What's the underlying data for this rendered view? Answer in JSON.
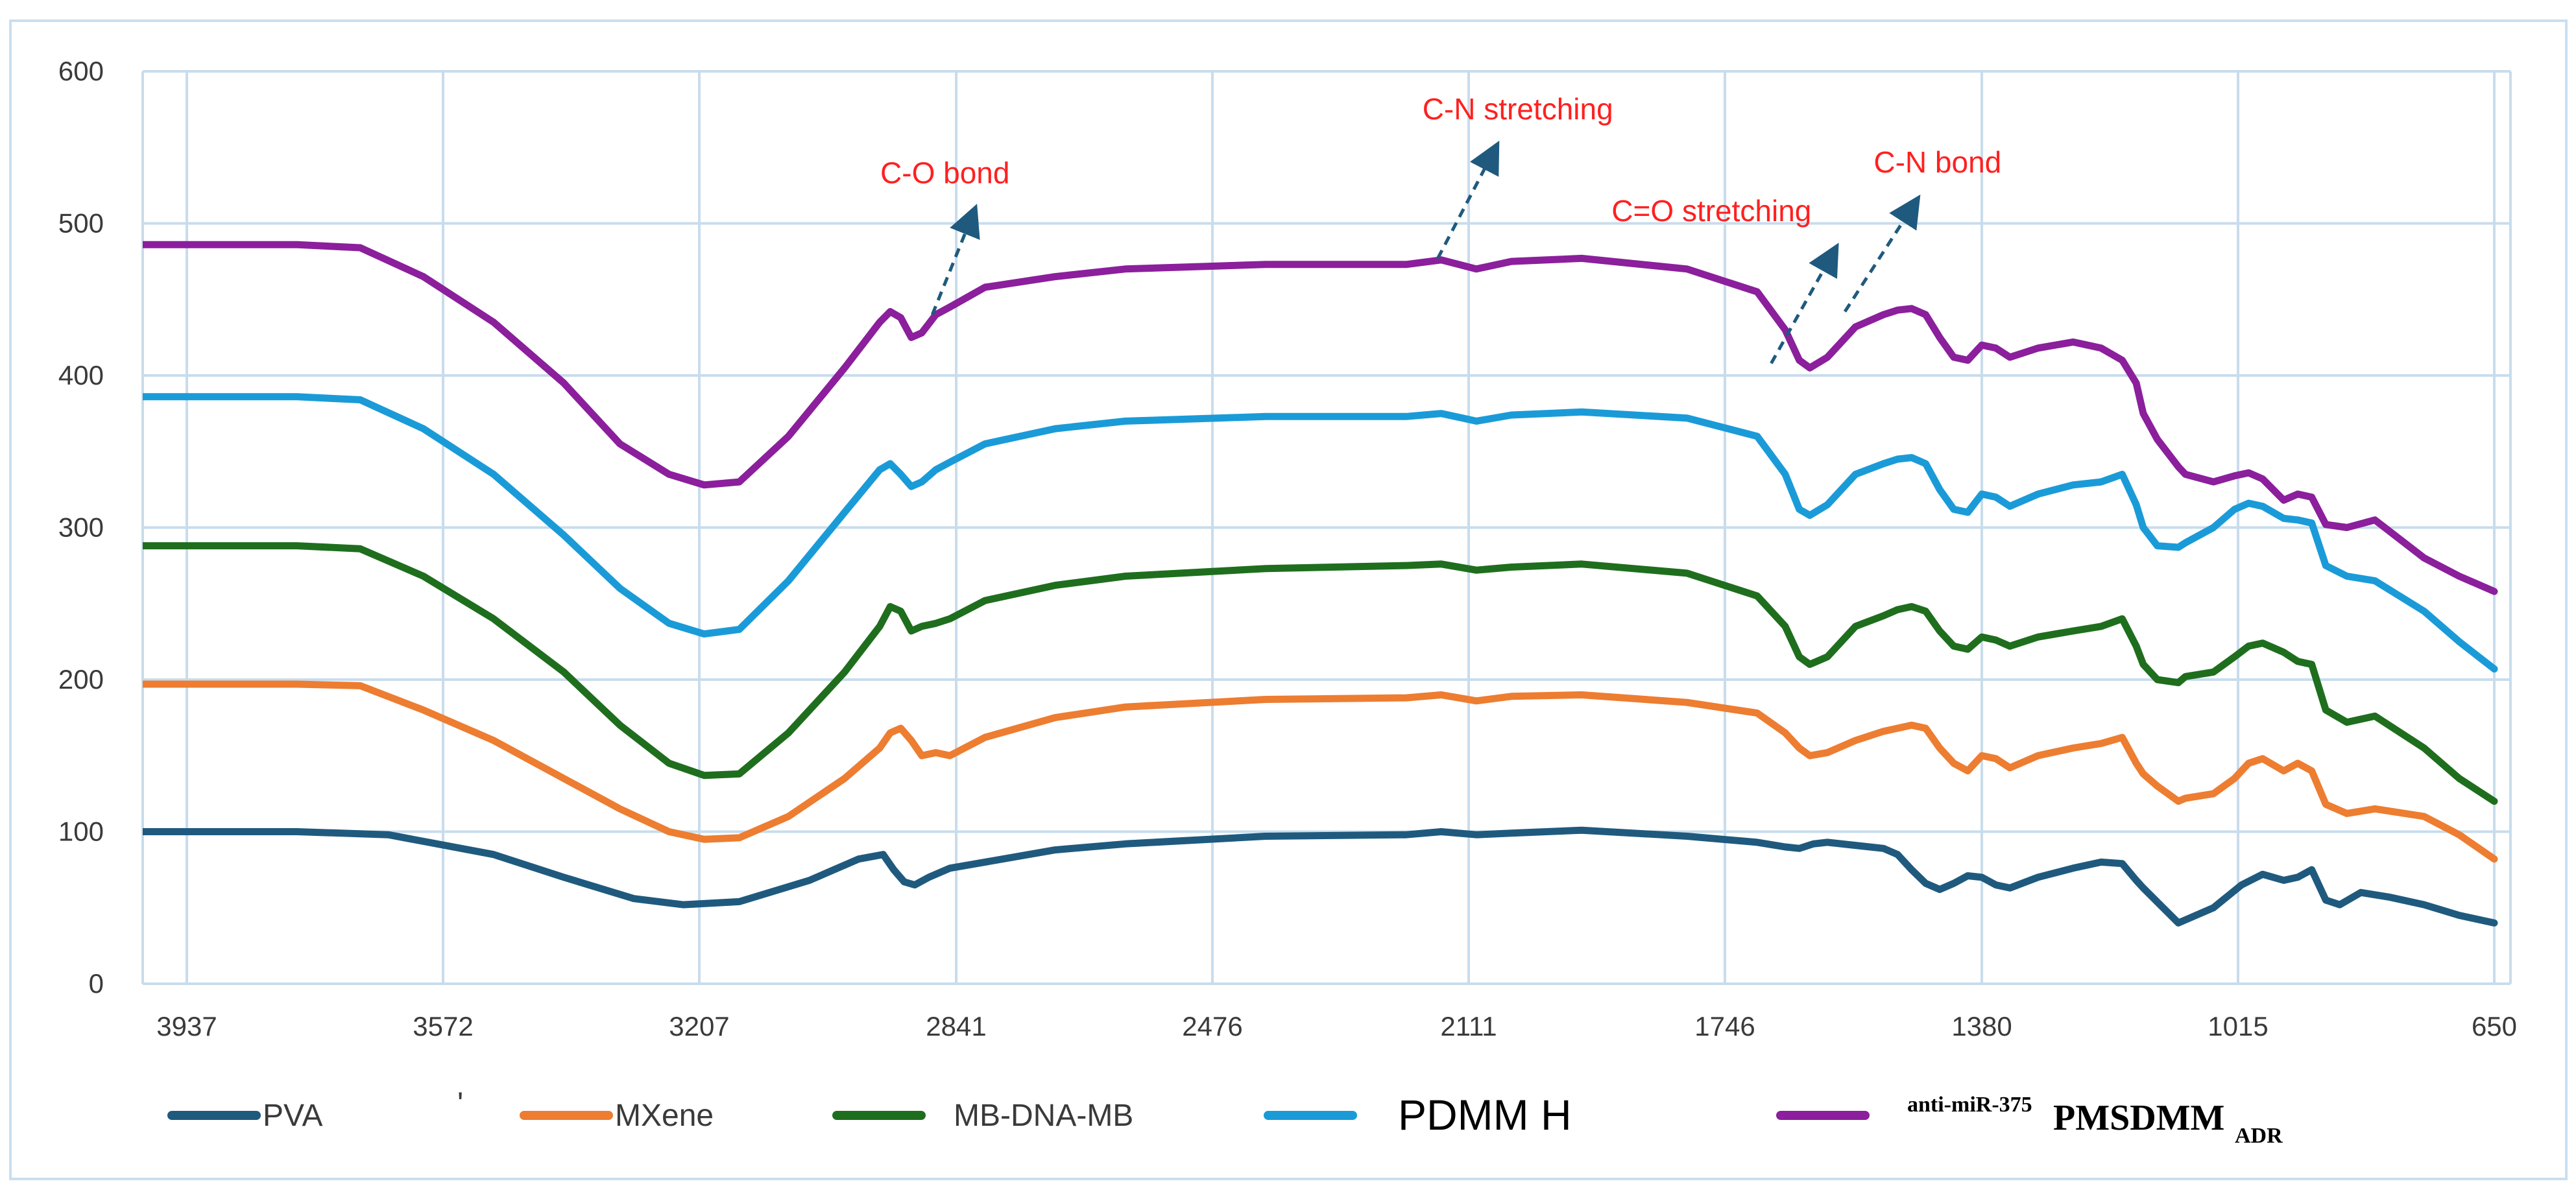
{
  "chart_data": {
    "type": "line",
    "title": "",
    "xlabel": "",
    "ylabel": "",
    "xlim": [
      3937,
      650
    ],
    "ylim": [
      0,
      600
    ],
    "x_reversed": true,
    "grid": true,
    "legend_position": "bottom",
    "x_ticks": [
      "3937",
      "3572",
      "3207",
      "2841",
      "2476",
      "2111",
      "1746",
      "1380",
      "1015",
      "650"
    ],
    "y_ticks": [
      "0",
      "100",
      "200",
      "300",
      "400",
      "500",
      "600"
    ],
    "series": [
      {
        "name": "PVA",
        "color": "#1f5a7e",
        "x": [
          4000,
          3780,
          3650,
          3500,
          3400,
          3300,
          3230,
          3150,
          3050,
          2980,
          2945,
          2930,
          2915,
          2900,
          2880,
          2850,
          2800,
          2700,
          2600,
          2400,
          2200,
          2150,
          2100,
          2050,
          1950,
          1800,
          1700,
          1660,
          1640,
          1620,
          1600,
          1560,
          1520,
          1500,
          1480,
          1460,
          1440,
          1420,
          1400,
          1380,
          1360,
          1340,
          1300,
          1250,
          1210,
          1180,
          1160,
          1150,
          1100,
          1090,
          1050,
          1010,
          980,
          950,
          930,
          910,
          890,
          870,
          840,
          800,
          750,
          700,
          650
        ],
        "y": [
          100,
          100,
          98,
          85,
          70,
          56,
          52,
          54,
          68,
          82,
          85,
          75,
          67,
          65,
          70,
          76,
          80,
          88,
          92,
          97,
          98,
          100,
          98,
          99,
          101,
          97,
          93,
          90,
          89,
          92,
          93,
          91,
          89,
          85,
          75,
          66,
          62,
          66,
          71,
          70,
          65,
          63,
          70,
          76,
          80,
          79,
          68,
          63,
          40,
          42,
          50,
          65,
          72,
          68,
          70,
          75,
          55,
          52,
          60,
          57,
          52,
          45,
          40
        ]
      },
      {
        "name": "MXene",
        "color": "#ed7d31",
        "x": [
          4000,
          3780,
          3690,
          3600,
          3500,
          3400,
          3320,
          3250,
          3200,
          3150,
          3080,
          3000,
          2950,
          2935,
          2920,
          2905,
          2890,
          2870,
          2850,
          2800,
          2700,
          2600,
          2400,
          2200,
          2150,
          2100,
          2050,
          1950,
          1800,
          1700,
          1660,
          1640,
          1625,
          1600,
          1560,
          1520,
          1500,
          1480,
          1460,
          1440,
          1420,
          1400,
          1380,
          1360,
          1340,
          1300,
          1250,
          1210,
          1180,
          1160,
          1150,
          1130,
          1100,
          1090,
          1050,
          1020,
          1000,
          980,
          950,
          930,
          910,
          890,
          860,
          820,
          750,
          700,
          650
        ],
        "y": [
          197,
          197,
          196,
          180,
          160,
          135,
          115,
          100,
          95,
          96,
          110,
          135,
          155,
          165,
          168,
          160,
          150,
          152,
          150,
          162,
          175,
          182,
          187,
          188,
          190,
          186,
          189,
          190,
          185,
          178,
          165,
          155,
          150,
          152,
          160,
          166,
          168,
          170,
          168,
          155,
          145,
          140,
          150,
          148,
          142,
          150,
          155,
          158,
          162,
          145,
          138,
          130,
          120,
          122,
          125,
          135,
          145,
          148,
          140,
          145,
          140,
          118,
          112,
          115,
          110,
          98,
          82
        ]
      },
      {
        "name": "MB-DNA-MB",
        "color": "#1e6e1e",
        "x": [
          4000,
          3780,
          3690,
          3600,
          3500,
          3400,
          3320,
          3250,
          3200,
          3150,
          3080,
          3000,
          2950,
          2935,
          2920,
          2905,
          2890,
          2870,
          2850,
          2800,
          2700,
          2600,
          2400,
          2200,
          2150,
          2100,
          2050,
          1950,
          1800,
          1700,
          1660,
          1640,
          1625,
          1600,
          1560,
          1520,
          1500,
          1480,
          1460,
          1440,
          1420,
          1400,
          1380,
          1360,
          1340,
          1300,
          1250,
          1210,
          1180,
          1160,
          1150,
          1130,
          1100,
          1090,
          1050,
          1020,
          1000,
          980,
          950,
          930,
          910,
          890,
          860,
          820,
          750,
          700,
          650
        ],
        "y": [
          288,
          288,
          286,
          268,
          240,
          205,
          170,
          145,
          137,
          138,
          165,
          205,
          235,
          248,
          245,
          232,
          235,
          237,
          240,
          252,
          262,
          268,
          273,
          275,
          276,
          272,
          274,
          276,
          270,
          255,
          235,
          215,
          210,
          215,
          235,
          242,
          246,
          248,
          245,
          232,
          222,
          220,
          228,
          226,
          222,
          228,
          232,
          235,
          240,
          222,
          210,
          200,
          198,
          202,
          205,
          215,
          222,
          224,
          218,
          212,
          210,
          180,
          172,
          176,
          155,
          135,
          120
        ]
      },
      {
        "name": "PDMM H",
        "color": "#1a9bd8",
        "x": [
          4000,
          3780,
          3690,
          3600,
          3500,
          3400,
          3320,
          3250,
          3200,
          3150,
          3080,
          3000,
          2950,
          2935,
          2920,
          2905,
          2890,
          2870,
          2850,
          2800,
          2700,
          2600,
          2400,
          2200,
          2150,
          2100,
          2050,
          1950,
          1800,
          1700,
          1660,
          1640,
          1625,
          1600,
          1560,
          1520,
          1500,
          1480,
          1460,
          1440,
          1420,
          1400,
          1380,
          1360,
          1340,
          1300,
          1250,
          1210,
          1180,
          1160,
          1150,
          1130,
          1100,
          1090,
          1050,
          1020,
          1000,
          980,
          950,
          930,
          910,
          890,
          860,
          820,
          750,
          700,
          650
        ],
        "y": [
          386,
          386,
          384,
          365,
          335,
          295,
          260,
          237,
          230,
          233,
          265,
          310,
          338,
          342,
          335,
          327,
          330,
          338,
          343,
          355,
          365,
          370,
          373,
          373,
          375,
          370,
          374,
          376,
          372,
          360,
          335,
          312,
          308,
          315,
          335,
          342,
          345,
          346,
          342,
          325,
          312,
          310,
          322,
          320,
          314,
          322,
          328,
          330,
          335,
          315,
          300,
          288,
          287,
          290,
          300,
          312,
          316,
          314,
          306,
          305,
          303,
          275,
          268,
          265,
          245,
          225,
          207
        ]
      },
      {
        "name": "anti-miR-375 PMSDMM ADR",
        "color": "#8b1f9c",
        "x": [
          4000,
          3780,
          3690,
          3600,
          3500,
          3400,
          3320,
          3250,
          3200,
          3150,
          3080,
          3000,
          2950,
          2935,
          2920,
          2905,
          2890,
          2870,
          2850,
          2800,
          2700,
          2600,
          2400,
          2200,
          2150,
          2100,
          2050,
          1950,
          1800,
          1700,
          1660,
          1640,
          1625,
          1600,
          1560,
          1520,
          1500,
          1480,
          1460,
          1440,
          1420,
          1400,
          1380,
          1360,
          1340,
          1300,
          1250,
          1210,
          1180,
          1160,
          1150,
          1130,
          1100,
          1090,
          1050,
          1020,
          1000,
          980,
          950,
          930,
          910,
          890,
          860,
          820,
          750,
          700,
          650
        ],
        "y": [
          486,
          486,
          484,
          465,
          435,
          395,
          355,
          335,
          328,
          330,
          360,
          405,
          435,
          442,
          438,
          425,
          428,
          440,
          445,
          458,
          465,
          470,
          473,
          473,
          476,
          470,
          475,
          477,
          470,
          455,
          430,
          410,
          405,
          412,
          432,
          440,
          443,
          444,
          440,
          425,
          412,
          410,
          420,
          418,
          412,
          418,
          422,
          418,
          410,
          395,
          375,
          358,
          340,
          335,
          330,
          334,
          336,
          332,
          318,
          322,
          320,
          302,
          300,
          305,
          280,
          268,
          258
        ]
      }
    ],
    "annotations": [
      {
        "text": "C-O bond",
        "tip_x": 2875,
        "tip_y": 440,
        "head_x": 2820,
        "head_y": 503
      },
      {
        "text": "C-N stretching",
        "tip_x": 2155,
        "tip_y": 477,
        "head_x": 2078,
        "head_y": 545
      },
      {
        "text": "C=O stretching",
        "tip_x": 1680,
        "tip_y": 408,
        "head_x": 1595,
        "head_y": 478
      },
      {
        "text": "C-N bond",
        "tip_x": 1575,
        "tip_y": 442,
        "head_x": 1480,
        "head_y": 510
      }
    ]
  },
  "legend": {
    "items": [
      {
        "label": "PVA",
        "color": "#1f5a7e"
      },
      {
        "label": "MXene",
        "color": "#ed7d31"
      },
      {
        "label": "MB-DNA-MB",
        "color": "#1e6e1e"
      },
      {
        "label": "PDMM H",
        "color": "#1a9bd8"
      },
      {
        "label": "PMSDMM",
        "prefix": "anti-miR-375",
        "subscript": "ADR",
        "color": "#8b1f9c"
      }
    ],
    "stray_mark": "'"
  }
}
